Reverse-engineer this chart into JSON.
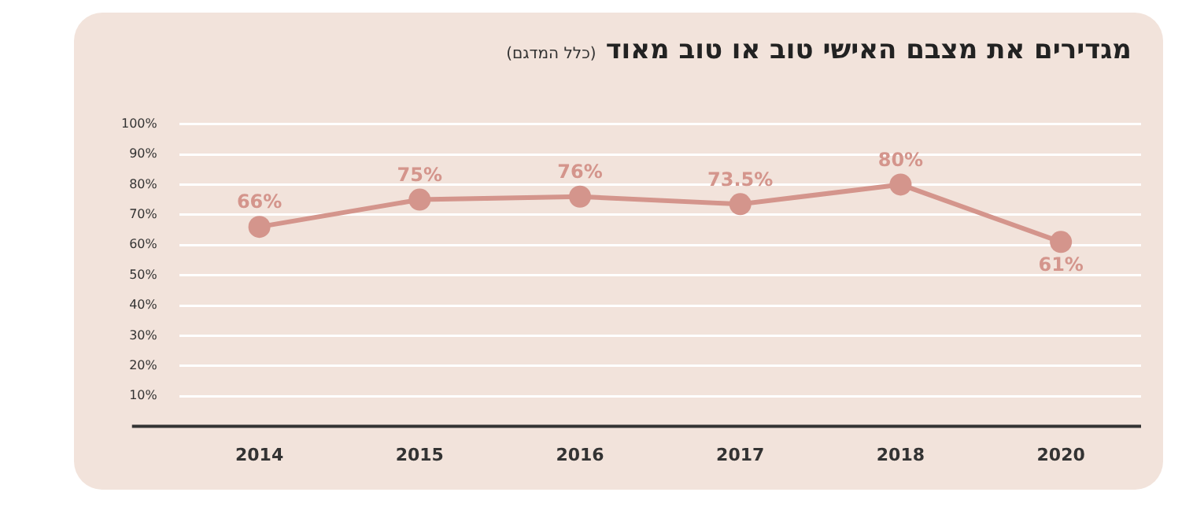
{
  "chart_data": {
    "type": "line",
    "title": "מגדירים את מצבם האישי טוב או טוב מאוד",
    "subtitle": "(כלל המדגם)",
    "categories": [
      "2014",
      "2015",
      "2016",
      "2017",
      "2018",
      "2020"
    ],
    "series": [
      {
        "color": "#d4958c",
        "values": [
          66,
          75,
          76,
          73.5,
          80,
          61
        ]
      }
    ],
    "ylim": [
      0,
      100
    ],
    "yticks": [
      {
        "value": 10,
        "label": "10%"
      },
      {
        "value": 20,
        "label": "20%"
      },
      {
        "value": 30,
        "label": "30%"
      },
      {
        "value": 40,
        "label": "40%"
      },
      {
        "value": 50,
        "label": "50%"
      },
      {
        "value": 60,
        "label": "60%"
      },
      {
        "value": 70,
        "label": "70%"
      },
      {
        "value": 80,
        "label": "80%"
      },
      {
        "value": 90,
        "label": "90%"
      },
      {
        "value": 100,
        "label": "100%"
      }
    ],
    "value_labels": [
      "66%",
      "75%",
      "76%",
      "73.5%",
      "80%",
      "61%"
    ],
    "grid": "y",
    "legend": false,
    "marker": "circle",
    "line_style": "solid"
  }
}
